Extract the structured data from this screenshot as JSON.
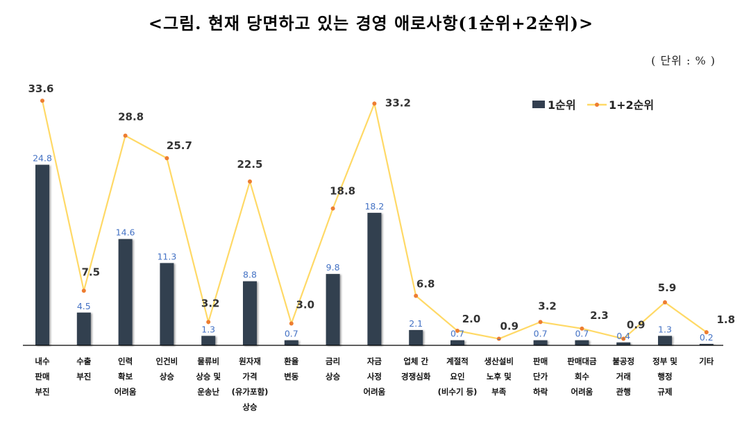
{
  "title": "<그림. 현재 당면하고 있는 경영 애로사항(1순위+2순위)>",
  "unit": "( 단위 : % )",
  "chart_data": {
    "type": "bar+line",
    "title": "<그림. 현재 당면하고 있는 경영 애로사항(1순위+2순위)>",
    "categories": [
      [
        "내수",
        "판매",
        "부진"
      ],
      [
        "수출",
        "부진"
      ],
      [
        "인력",
        "확보",
        "어려움"
      ],
      [
        "인건비",
        "상승"
      ],
      [
        "물류비",
        "상승 및",
        "운송난"
      ],
      [
        "원자재",
        "가격",
        "(유가포함)",
        "상승"
      ],
      [
        "환율",
        "변동"
      ],
      [
        "금리",
        "상승"
      ],
      [
        "자금",
        "사정",
        "어려움"
      ],
      [
        "업체 간",
        "경쟁심화"
      ],
      [
        "계절적",
        "요인",
        "(비수기 등)"
      ],
      [
        "생산설비",
        "노후 및",
        "부족"
      ],
      [
        "판매",
        "단가",
        "하락"
      ],
      [
        "판매대금",
        "회수",
        "어려움"
      ],
      [
        "불공정",
        "거래",
        "관행"
      ],
      [
        "정부 및",
        "행정",
        "규제"
      ],
      [
        "기타"
      ]
    ],
    "series": [
      {
        "name": "1순위",
        "type": "bar",
        "color": "#333F50",
        "values": [
          24.8,
          4.5,
          14.6,
          11.3,
          1.3,
          8.8,
          0.7,
          9.8,
          18.2,
          2.1,
          0.7,
          0,
          0.7,
          0.7,
          0.4,
          1.3,
          0.2
        ],
        "labels": [
          "24.8",
          "4.5",
          "14.6",
          "11.3",
          "1.3",
          "8.8",
          "0.7",
          "9.8",
          "18.2",
          "2.1",
          "0.7",
          "-",
          "0.7",
          "0.7",
          "0.4",
          "1.3",
          "0.2"
        ]
      },
      {
        "name": "1+2순위",
        "type": "line",
        "color": "#FFD966",
        "marker_color": "#ED7D31",
        "values": [
          33.6,
          7.5,
          28.8,
          25.7,
          3.2,
          22.5,
          3.0,
          18.8,
          33.2,
          6.8,
          2.0,
          0.9,
          3.2,
          2.3,
          0.9,
          5.9,
          1.8
        ],
        "labels": [
          "33.6",
          "7.5",
          "28.8",
          "25.7",
          "3.2",
          "22.5",
          "3.0",
          "18.8",
          "33.2",
          "6.8",
          "2.0",
          "0.9",
          "3.2",
          "2.3",
          "0.9",
          "5.9",
          "1.8"
        ]
      }
    ],
    "ylim": [
      0,
      38
    ],
    "grid": false,
    "y_axis_shown": false,
    "legend": "top-right"
  }
}
